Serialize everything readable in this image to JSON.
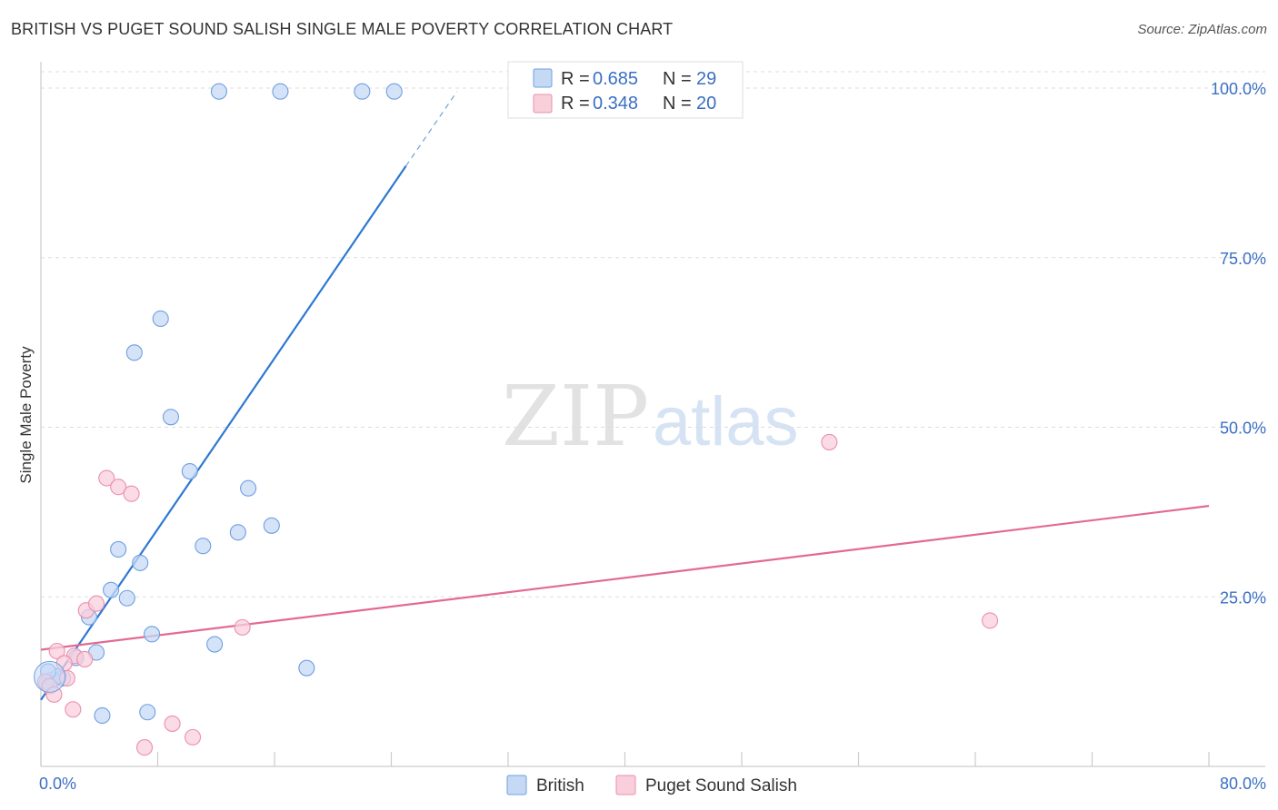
{
  "title": "BRITISH VS PUGET SOUND SALISH SINGLE MALE POVERTY CORRELATION CHART",
  "source": "Source: ZipAtlas.com",
  "watermark": {
    "zip": "ZIP",
    "atlas": "atlas"
  },
  "chart_data": {
    "type": "scatter",
    "ylabel": "Single Male Poverty",
    "xlim": [
      0,
      80
    ],
    "ylim": [
      0,
      105
    ],
    "x_tick_labels": {
      "left": "0.0%",
      "right": "80.0%"
    },
    "y_ticks": [
      {
        "value": 25,
        "label": "25.0%"
      },
      {
        "value": 50,
        "label": "50.0%"
      },
      {
        "value": 75,
        "label": "75.0%"
      },
      {
        "value": 100,
        "label": "100.0%"
      }
    ],
    "grid": true,
    "legend": {
      "placement": "top-center",
      "entries": [
        {
          "r_label": "R = ",
          "r_value": "0.685",
          "n_label": "N = ",
          "n_value": "29"
        },
        {
          "r_label": "R = ",
          "r_value": "0.348",
          "n_label": "N = ",
          "n_value": "20"
        }
      ]
    },
    "series": [
      {
        "name": "British",
        "color": "#6f9fe0",
        "fill": "#c5d9f5",
        "line_color": "#2e78d2",
        "trend": {
          "x0": 0,
          "y0": 9.8,
          "x1": 25,
          "y1": 88.5,
          "dash_to_x": 28.5,
          "dash_to_y": 99.5
        },
        "points": [
          {
            "x": 12.2,
            "y": 99.5
          },
          {
            "x": 16.4,
            "y": 99.5
          },
          {
            "x": 22.0,
            "y": 99.5
          },
          {
            "x": 24.2,
            "y": 99.5
          },
          {
            "x": 8.2,
            "y": 66.0
          },
          {
            "x": 6.4,
            "y": 61.0
          },
          {
            "x": 8.9,
            "y": 51.5
          },
          {
            "x": 10.2,
            "y": 43.5
          },
          {
            "x": 14.2,
            "y": 41.0
          },
          {
            "x": 13.5,
            "y": 34.5
          },
          {
            "x": 15.8,
            "y": 35.5
          },
          {
            "x": 11.1,
            "y": 32.5
          },
          {
            "x": 5.3,
            "y": 32.0
          },
          {
            "x": 6.8,
            "y": 30.0
          },
          {
            "x": 4.8,
            "y": 26.0
          },
          {
            "x": 5.9,
            "y": 24.8
          },
          {
            "x": 3.3,
            "y": 22.0
          },
          {
            "x": 7.6,
            "y": 19.5
          },
          {
            "x": 11.9,
            "y": 18.0
          },
          {
            "x": 3.8,
            "y": 16.8
          },
          {
            "x": 2.4,
            "y": 16.0
          },
          {
            "x": 18.2,
            "y": 14.5
          },
          {
            "x": 1.5,
            "y": 13.0
          },
          {
            "x": 0.8,
            "y": 12.8
          },
          {
            "x": 1.2,
            "y": 13.3
          },
          {
            "x": 0.4,
            "y": 12.2
          },
          {
            "x": 0.5,
            "y": 14.0
          },
          {
            "x": 7.3,
            "y": 8.0
          },
          {
            "x": 4.2,
            "y": 7.5
          }
        ]
      },
      {
        "name": "Puget Sound Salish",
        "color": "#eb8fae",
        "fill": "#f9cfdc",
        "line_color": "#e26a93",
        "trend": {
          "x0": 0,
          "y0": 17.2,
          "x1": 80,
          "y1": 38.4
        },
        "points": [
          {
            "x": 54.0,
            "y": 47.8
          },
          {
            "x": 4.5,
            "y": 42.5
          },
          {
            "x": 5.3,
            "y": 41.2
          },
          {
            "x": 6.2,
            "y": 40.2
          },
          {
            "x": 3.1,
            "y": 23.0
          },
          {
            "x": 3.8,
            "y": 24.0
          },
          {
            "x": 13.8,
            "y": 20.5
          },
          {
            "x": 65.0,
            "y": 21.5
          },
          {
            "x": 1.1,
            "y": 17.0
          },
          {
            "x": 2.3,
            "y": 16.3
          },
          {
            "x": 3.0,
            "y": 15.8
          },
          {
            "x": 1.6,
            "y": 15.2
          },
          {
            "x": 0.3,
            "y": 12.5
          },
          {
            "x": 1.8,
            "y": 13.0
          },
          {
            "x": 0.6,
            "y": 11.8
          },
          {
            "x": 0.9,
            "y": 10.6
          },
          {
            "x": 2.2,
            "y": 8.4
          },
          {
            "x": 9.0,
            "y": 6.3
          },
          {
            "x": 10.4,
            "y": 4.3
          },
          {
            "x": 7.1,
            "y": 2.8
          }
        ]
      }
    ]
  }
}
